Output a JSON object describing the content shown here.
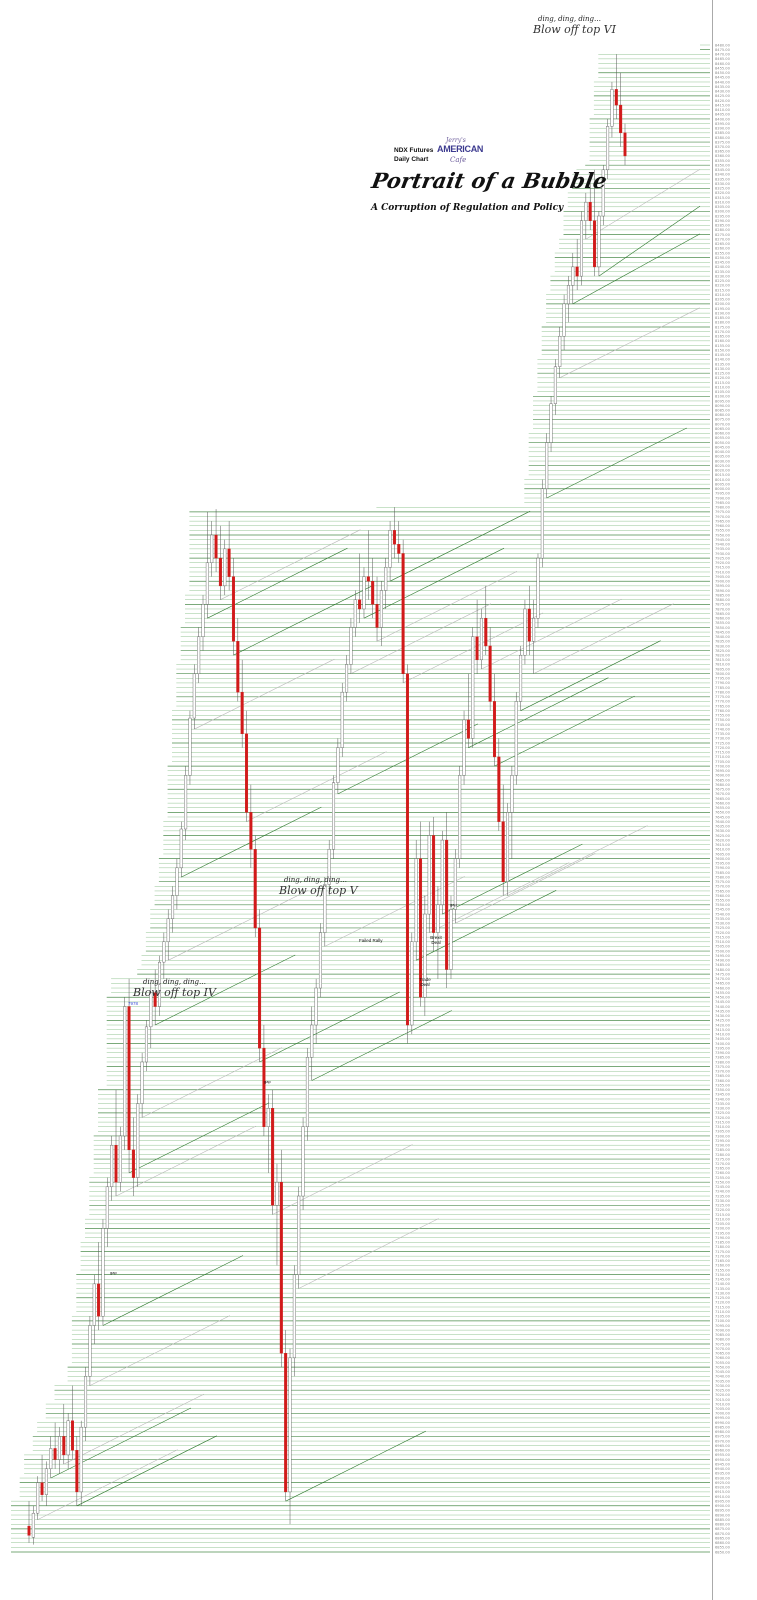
{
  "chart_data": {
    "type": "candlestick",
    "title": "Portrait of a Bubble",
    "subtitle": "A Corruption of Regulation and Policy",
    "instrument": "NDX Futures",
    "timeframe": "Daily Chart",
    "ylim": [
      6850,
      8480
    ],
    "tick_step": 5,
    "tick_format": "0.00",
    "down_color": "#d11a1a",
    "up_color": "#ffffff",
    "grid_color": "#4f9a4f",
    "logo": {
      "line1": "Jerry's",
      "line2": "AMERICAN",
      "line3": "Cafe"
    },
    "annotations": [
      {
        "id": "top4-ding",
        "text": "ding, ding, ding…"
      },
      {
        "id": "top4-label",
        "text": "Blow off top IV"
      },
      {
        "id": "top4-value",
        "text": "7978"
      },
      {
        "id": "top5-ding",
        "text": "ding, ding, ding…"
      },
      {
        "id": "top5-label",
        "text": "Blow off top V"
      },
      {
        "id": "top6-ding",
        "text": "ding, ding, ding…"
      },
      {
        "id": "top6-label",
        "text": "Blow off top VI"
      },
      {
        "id": "failed-rally",
        "text": "Failed Rally"
      },
      {
        "id": "brexit-deal",
        "text": "Brexit Deal"
      },
      {
        "id": "trade-deal",
        "text": "Trade Deal"
      },
      {
        "id": "gap-1",
        "text": "gap"
      },
      {
        "id": "gap-2",
        "text": "gap"
      },
      {
        "id": "gap-3",
        "text": "gap"
      }
    ],
    "candles_approx": [
      {
        "o": 6878,
        "h": 6905,
        "l": 6860,
        "c": 6868
      },
      {
        "o": 6866,
        "h": 6900,
        "l": 6858,
        "c": 6892
      },
      {
        "o": 6892,
        "h": 6932,
        "l": 6885,
        "c": 6925
      },
      {
        "o": 6925,
        "h": 6955,
        "l": 6905,
        "c": 6912
      },
      {
        "o": 6912,
        "h": 6948,
        "l": 6900,
        "c": 6940
      },
      {
        "o": 6940,
        "h": 6975,
        "l": 6930,
        "c": 6962
      },
      {
        "o": 6962,
        "h": 6990,
        "l": 6940,
        "c": 6950
      },
      {
        "o": 6950,
        "h": 6985,
        "l": 6935,
        "c": 6975
      },
      {
        "o": 6975,
        "h": 7010,
        "l": 6945,
        "c": 6955
      },
      {
        "o": 6955,
        "h": 7000,
        "l": 6940,
        "c": 6992
      },
      {
        "o": 6992,
        "h": 7030,
        "l": 6950,
        "c": 6960
      },
      {
        "o": 6960,
        "h": 6975,
        "l": 6900,
        "c": 6915
      },
      {
        "o": 6915,
        "h": 6992,
        "l": 6900,
        "c": 6985
      },
      {
        "o": 6985,
        "h": 7050,
        "l": 6970,
        "c": 7040
      },
      {
        "o": 7040,
        "h": 7105,
        "l": 7030,
        "c": 7095
      },
      {
        "o": 7095,
        "h": 7150,
        "l": 7075,
        "c": 7140
      },
      {
        "o": 7140,
        "h": 7185,
        "l": 7090,
        "c": 7105
      },
      {
        "o": 7105,
        "h": 7210,
        "l": 7095,
        "c": 7200
      },
      {
        "o": 7200,
        "h": 7255,
        "l": 7180,
        "c": 7245
      },
      {
        "o": 7245,
        "h": 7300,
        "l": 7230,
        "c": 7290
      },
      {
        "o": 7290,
        "h": 7350,
        "l": 7235,
        "c": 7250
      },
      {
        "o": 7250,
        "h": 7310,
        "l": 7240,
        "c": 7300
      },
      {
        "o": 7300,
        "h": 7450,
        "l": 7285,
        "c": 7440
      },
      {
        "o": 7440,
        "h": 7470,
        "l": 7260,
        "c": 7285
      },
      {
        "o": 7285,
        "h": 7320,
        "l": 7235,
        "c": 7255
      },
      {
        "o": 7255,
        "h": 7345,
        "l": 7245,
        "c": 7335
      },
      {
        "o": 7335,
        "h": 7390,
        "l": 7320,
        "c": 7380
      },
      {
        "o": 7380,
        "h": 7425,
        "l": 7370,
        "c": 7418
      },
      {
        "o": 7418,
        "h": 7465,
        "l": 7395,
        "c": 7455
      },
      {
        "o": 7455,
        "h": 7480,
        "l": 7420,
        "c": 7440
      },
      {
        "o": 7440,
        "h": 7495,
        "l": 7430,
        "c": 7488
      },
      {
        "o": 7488,
        "h": 7520,
        "l": 7470,
        "c": 7510
      },
      {
        "o": 7510,
        "h": 7545,
        "l": 7490,
        "c": 7535
      },
      {
        "o": 7535,
        "h": 7570,
        "l": 7520,
        "c": 7560
      },
      {
        "o": 7560,
        "h": 7600,
        "l": 7545,
        "c": 7590
      },
      {
        "o": 7590,
        "h": 7640,
        "l": 7580,
        "c": 7632
      },
      {
        "o": 7632,
        "h": 7700,
        "l": 7620,
        "c": 7690
      },
      {
        "o": 7690,
        "h": 7760,
        "l": 7680,
        "c": 7752
      },
      {
        "o": 7752,
        "h": 7810,
        "l": 7740,
        "c": 7800
      },
      {
        "o": 7800,
        "h": 7850,
        "l": 7790,
        "c": 7840
      },
      {
        "o": 7840,
        "h": 7885,
        "l": 7825,
        "c": 7875
      },
      {
        "o": 7875,
        "h": 7975,
        "l": 7860,
        "c": 7920
      },
      {
        "o": 7920,
        "h": 7965,
        "l": 7905,
        "c": 7950
      },
      {
        "o": 7950,
        "h": 7978,
        "l": 7910,
        "c": 7925
      },
      {
        "o": 7925,
        "h": 7960,
        "l": 7880,
        "c": 7895
      },
      {
        "o": 7895,
        "h": 7945,
        "l": 7885,
        "c": 7935
      },
      {
        "o": 7935,
        "h": 7965,
        "l": 7890,
        "c": 7905
      },
      {
        "o": 7905,
        "h": 7925,
        "l": 7820,
        "c": 7835
      },
      {
        "o": 7835,
        "h": 7860,
        "l": 7770,
        "c": 7780
      },
      {
        "o": 7780,
        "h": 7815,
        "l": 7720,
        "c": 7735
      },
      {
        "o": 7735,
        "h": 7760,
        "l": 7640,
        "c": 7650
      },
      {
        "o": 7650,
        "h": 7680,
        "l": 7590,
        "c": 7610
      },
      {
        "o": 7610,
        "h": 7625,
        "l": 7515,
        "c": 7525
      },
      {
        "o": 7525,
        "h": 7545,
        "l": 7380,
        "c": 7395
      },
      {
        "o": 7395,
        "h": 7420,
        "l": 7300,
        "c": 7310
      },
      {
        "o": 7310,
        "h": 7345,
        "l": 7260,
        "c": 7330
      },
      {
        "o": 7330,
        "h": 7350,
        "l": 7215,
        "c": 7225
      },
      {
        "o": 7225,
        "h": 7270,
        "l": 7160,
        "c": 7250
      },
      {
        "o": 7250,
        "h": 7285,
        "l": 7050,
        "c": 7065
      },
      {
        "o": 7065,
        "h": 7090,
        "l": 6905,
        "c": 6915
      },
      {
        "o": 6915,
        "h": 7070,
        "l": 6880,
        "c": 7060
      },
      {
        "o": 7060,
        "h": 7160,
        "l": 7040,
        "c": 7150
      },
      {
        "o": 7150,
        "h": 7245,
        "l": 7135,
        "c": 7235
      },
      {
        "o": 7235,
        "h": 7320,
        "l": 7220,
        "c": 7310
      },
      {
        "o": 7310,
        "h": 7395,
        "l": 7295,
        "c": 7385
      },
      {
        "o": 7385,
        "h": 7440,
        "l": 7360,
        "c": 7420
      },
      {
        "o": 7420,
        "h": 7470,
        "l": 7400,
        "c": 7460
      },
      {
        "o": 7460,
        "h": 7530,
        "l": 7450,
        "c": 7520
      },
      {
        "o": 7520,
        "h": 7580,
        "l": 7505,
        "c": 7572
      },
      {
        "o": 7572,
        "h": 7620,
        "l": 7560,
        "c": 7610
      },
      {
        "o": 7610,
        "h": 7690,
        "l": 7600,
        "c": 7682
      },
      {
        "o": 7682,
        "h": 7730,
        "l": 7670,
        "c": 7720
      },
      {
        "o": 7720,
        "h": 7790,
        "l": 7710,
        "c": 7780
      },
      {
        "o": 7780,
        "h": 7820,
        "l": 7770,
        "c": 7810
      },
      {
        "o": 7810,
        "h": 7860,
        "l": 7800,
        "c": 7850
      },
      {
        "o": 7850,
        "h": 7890,
        "l": 7840,
        "c": 7880
      },
      {
        "o": 7880,
        "h": 7930,
        "l": 7855,
        "c": 7870
      },
      {
        "o": 7870,
        "h": 7915,
        "l": 7860,
        "c": 7905
      },
      {
        "o": 7905,
        "h": 7955,
        "l": 7880,
        "c": 7900
      },
      {
        "o": 7900,
        "h": 7925,
        "l": 7860,
        "c": 7875
      },
      {
        "o": 7875,
        "h": 7905,
        "l": 7835,
        "c": 7850
      },
      {
        "o": 7850,
        "h": 7900,
        "l": 7830,
        "c": 7890
      },
      {
        "o": 7890,
        "h": 7925,
        "l": 7870,
        "c": 7915
      },
      {
        "o": 7915,
        "h": 7965,
        "l": 7900,
        "c": 7955
      },
      {
        "o": 7955,
        "h": 7980,
        "l": 7925,
        "c": 7940
      },
      {
        "o": 7940,
        "h": 7965,
        "l": 7920,
        "c": 7930
      },
      {
        "o": 7930,
        "h": 7945,
        "l": 7790,
        "c": 7800
      },
      {
        "o": 7800,
        "h": 7810,
        "l": 7400,
        "c": 7420
      },
      {
        "o": 7420,
        "h": 7520,
        "l": 7410,
        "c": 7510
      },
      {
        "o": 7510,
        "h": 7620,
        "l": 7490,
        "c": 7600
      },
      {
        "o": 7600,
        "h": 7640,
        "l": 7440,
        "c": 7450
      },
      {
        "o": 7450,
        "h": 7560,
        "l": 7430,
        "c": 7540
      },
      {
        "o": 7540,
        "h": 7640,
        "l": 7520,
        "c": 7625
      },
      {
        "o": 7625,
        "h": 7645,
        "l": 7500,
        "c": 7520
      },
      {
        "o": 7520,
        "h": 7570,
        "l": 7470,
        "c": 7550
      },
      {
        "o": 7550,
        "h": 7630,
        "l": 7540,
        "c": 7620
      },
      {
        "o": 7620,
        "h": 7650,
        "l": 7460,
        "c": 7480
      },
      {
        "o": 7480,
        "h": 7560,
        "l": 7470,
        "c": 7545
      },
      {
        "o": 7545,
        "h": 7610,
        "l": 7530,
        "c": 7600
      },
      {
        "o": 7600,
        "h": 7700,
        "l": 7590,
        "c": 7690
      },
      {
        "o": 7690,
        "h": 7760,
        "l": 7680,
        "c": 7750
      },
      {
        "o": 7750,
        "h": 7800,
        "l": 7720,
        "c": 7730
      },
      {
        "o": 7730,
        "h": 7850,
        "l": 7720,
        "c": 7840
      },
      {
        "o": 7840,
        "h": 7880,
        "l": 7800,
        "c": 7815
      },
      {
        "o": 7815,
        "h": 7870,
        "l": 7805,
        "c": 7860
      },
      {
        "o": 7860,
        "h": 7895,
        "l": 7820,
        "c": 7830
      },
      {
        "o": 7830,
        "h": 7850,
        "l": 7760,
        "c": 7770
      },
      {
        "o": 7770,
        "h": 7800,
        "l": 7700,
        "c": 7710
      },
      {
        "o": 7710,
        "h": 7730,
        "l": 7630,
        "c": 7640
      },
      {
        "o": 7640,
        "h": 7680,
        "l": 7560,
        "c": 7575
      },
      {
        "o": 7575,
        "h": 7660,
        "l": 7560,
        "c": 7650
      },
      {
        "o": 7650,
        "h": 7700,
        "l": 7600,
        "c": 7690
      },
      {
        "o": 7690,
        "h": 7780,
        "l": 7680,
        "c": 7770
      },
      {
        "o": 7770,
        "h": 7830,
        "l": 7760,
        "c": 7820
      },
      {
        "o": 7820,
        "h": 7880,
        "l": 7810,
        "c": 7870
      },
      {
        "o": 7870,
        "h": 7895,
        "l": 7820,
        "c": 7835
      },
      {
        "o": 7835,
        "h": 7880,
        "l": 7800,
        "c": 7860
      },
      {
        "o": 7860,
        "h": 7930,
        "l": 7850,
        "c": 7925
      },
      {
        "o": 7925,
        "h": 8010,
        "l": 7915,
        "c": 8000
      },
      {
        "o": 8000,
        "h": 8060,
        "l": 7990,
        "c": 8050
      },
      {
        "o": 8050,
        "h": 8100,
        "l": 8040,
        "c": 8092
      },
      {
        "o": 8092,
        "h": 8140,
        "l": 8080,
        "c": 8132
      },
      {
        "o": 8132,
        "h": 8175,
        "l": 8120,
        "c": 8165
      },
      {
        "o": 8165,
        "h": 8210,
        "l": 8150,
        "c": 8200
      },
      {
        "o": 8200,
        "h": 8230,
        "l": 8180,
        "c": 8220
      },
      {
        "o": 8220,
        "h": 8255,
        "l": 8200,
        "c": 8240
      },
      {
        "o": 8240,
        "h": 8270,
        "l": 8215,
        "c": 8230
      },
      {
        "o": 8230,
        "h": 8300,
        "l": 8220,
        "c": 8290
      },
      {
        "o": 8290,
        "h": 8320,
        "l": 8270,
        "c": 8310
      },
      {
        "o": 8310,
        "h": 8340,
        "l": 8280,
        "c": 8290
      },
      {
        "o": 8290,
        "h": 8345,
        "l": 8230,
        "c": 8240
      },
      {
        "o": 8240,
        "h": 8300,
        "l": 8230,
        "c": 8295
      },
      {
        "o": 8295,
        "h": 8350,
        "l": 8285,
        "c": 8345
      },
      {
        "o": 8345,
        "h": 8400,
        "l": 8335,
        "c": 8392
      },
      {
        "o": 8392,
        "h": 8440,
        "l": 8380,
        "c": 8432
      },
      {
        "o": 8432,
        "h": 8470,
        "l": 8400,
        "c": 8415
      },
      {
        "o": 8415,
        "h": 8450,
        "l": 8370,
        "c": 8385
      },
      {
        "o": 8385,
        "h": 8395,
        "l": 8350,
        "c": 8360
      }
    ]
  }
}
